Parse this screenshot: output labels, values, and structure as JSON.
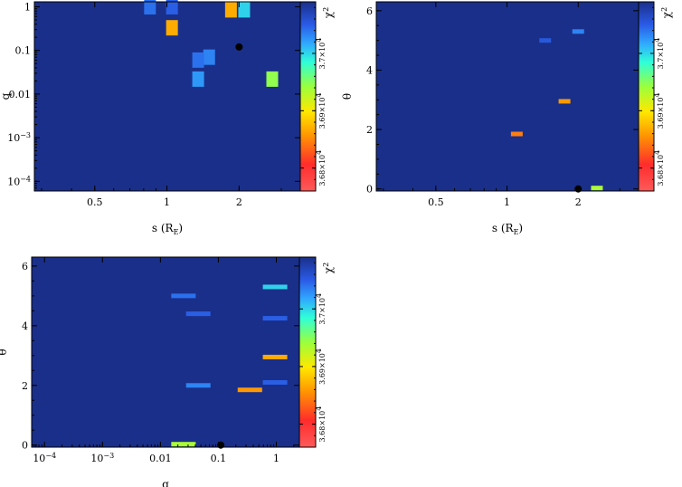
{
  "chart_data": [
    {
      "type": "heatmap",
      "xlabel": "s (R",
      "xlabel_sub": "E",
      "xlabel_close": ")",
      "ylabel": "q",
      "x_scale": "log",
      "y_scale": "log",
      "xlim": [
        0.28,
        3.6
      ],
      "ylim": [
        6e-05,
        1.3
      ],
      "x_ticks": [
        {
          "value": 0.5,
          "label": "0.5"
        },
        {
          "value": 1,
          "label": "1"
        },
        {
          "value": 2,
          "label": "2"
        }
      ],
      "y_ticks": [
        {
          "value": 1,
          "label": "1"
        },
        {
          "value": 0.1,
          "label": "0.1"
        },
        {
          "value": 0.01,
          "label": "0.01"
        },
        {
          "value": 0.001,
          "label": "10",
          "sup": "−3"
        },
        {
          "value": 0.0001,
          "label": "10",
          "sup": "−4"
        }
      ],
      "cells": [
        {
          "x": 0.85,
          "y": 1.0,
          "value": 37040
        },
        {
          "x": 1.05,
          "y": 1.0,
          "value": 37050
        },
        {
          "x": 1.05,
          "y": 0.33,
          "value": 36850
        },
        {
          "x": 1.85,
          "y": 0.85,
          "value": 36850
        },
        {
          "x": 2.1,
          "y": 0.85,
          "value": 36990
        },
        {
          "x": 1.5,
          "y": 0.07,
          "value": 37030
        },
        {
          "x": 1.35,
          "y": 0.06,
          "value": 37040
        },
        {
          "x": 1.35,
          "y": 0.022,
          "value": 37020
        },
        {
          "x": 2.75,
          "y": 0.022,
          "value": 36930
        }
      ],
      "best_fit": {
        "x": 2.0,
        "y": 0.12
      },
      "colorbar": {
        "title": "χ",
        "title_sup": "2",
        "ticks": [
          {
            "value": 37000,
            "label": "3.7×10",
            "sup": "4"
          },
          {
            "value": 36900,
            "label": "3.69×10",
            "sup": "4"
          },
          {
            "value": 36800,
            "label": "3.68×10",
            "sup": "4"
          }
        ]
      }
    },
    {
      "type": "heatmap",
      "xlabel": "s (R",
      "xlabel_sub": "E",
      "xlabel_close": ")",
      "ylabel": "θ",
      "x_scale": "log",
      "y_scale": "linear",
      "xlim": [
        0.28,
        3.6
      ],
      "ylim": [
        -0.07,
        6.3
      ],
      "x_ticks": [
        {
          "value": 0.5,
          "label": "0.5"
        },
        {
          "value": 1,
          "label": "1"
        },
        {
          "value": 2,
          "label": "2"
        }
      ],
      "y_ticks": [
        {
          "value": 0,
          "label": "0"
        },
        {
          "value": 2,
          "label": "2"
        },
        {
          "value": 4,
          "label": "4"
        },
        {
          "value": 6,
          "label": "6"
        }
      ],
      "cells": [
        {
          "x": 2.0,
          "y": 5.3,
          "value": 37030
        },
        {
          "x": 1.45,
          "y": 5.0,
          "value": 37055
        },
        {
          "x": 1.75,
          "y": 2.95,
          "value": 36840
        },
        {
          "x": 1.1,
          "y": 1.85,
          "value": 36830
        },
        {
          "x": 2.4,
          "y": 0.03,
          "value": 36920
        }
      ],
      "best_fit": {
        "x": 2.0,
        "y": 0.0
      },
      "colorbar": {
        "title": "χ",
        "title_sup": "2",
        "ticks": [
          {
            "value": 37000,
            "label": "3.7×10",
            "sup": "4"
          },
          {
            "value": 36900,
            "label": "3.69×10",
            "sup": "4"
          },
          {
            "value": 36800,
            "label": "3.68×10",
            "sup": "4"
          }
        ]
      }
    },
    {
      "type": "heatmap",
      "xlabel": "q",
      "ylabel": "θ",
      "x_scale": "log",
      "y_scale": "linear",
      "xlim": [
        6e-05,
        2.5
      ],
      "ylim": [
        -0.07,
        6.3
      ],
      "x_ticks": [
        {
          "value": 0.0001,
          "label": "10",
          "sup": "−4"
        },
        {
          "value": 0.001,
          "label": "10",
          "sup": "−3"
        },
        {
          "value": 0.01,
          "label": "0.01"
        },
        {
          "value": 0.1,
          "label": "0.1"
        },
        {
          "value": 1,
          "label": "1"
        }
      ],
      "y_ticks": [
        {
          "value": 0,
          "label": "0"
        },
        {
          "value": 2,
          "label": "2"
        },
        {
          "value": 4,
          "label": "4"
        },
        {
          "value": 6,
          "label": "6"
        }
      ],
      "cells": [
        {
          "x": 0.95,
          "y": 5.3,
          "value": 36990
        },
        {
          "x": 0.025,
          "y": 5.0,
          "value": 37040
        },
        {
          "x": 0.045,
          "y": 4.4,
          "value": 37050
        },
        {
          "x": 0.95,
          "y": 4.25,
          "value": 37050
        },
        {
          "x": 0.95,
          "y": 2.95,
          "value": 36850
        },
        {
          "x": 0.045,
          "y": 2.0,
          "value": 37030
        },
        {
          "x": 0.35,
          "y": 1.85,
          "value": 36840
        },
        {
          "x": 0.95,
          "y": 2.1,
          "value": 37050
        },
        {
          "x": 0.025,
          "y": 0.03,
          "value": 36920
        }
      ],
      "best_fit": {
        "x": 0.11,
        "y": 0.0
      },
      "colorbar": {
        "title": "χ",
        "title_sup": "2",
        "ticks": [
          {
            "value": 37000,
            "label": "3.7×10",
            "sup": "4"
          },
          {
            "value": 36900,
            "label": "3.69×10",
            "sup": "4"
          },
          {
            "value": 36800,
            "label": "3.68×10",
            "sup": "4"
          }
        ]
      }
    }
  ],
  "colors": {
    "background_cell": "#1a2f8a",
    "colormap": [
      "#ff4d4d",
      "#ff3030",
      "#ffa000",
      "#ffe000",
      "#a0ff3c",
      "#30ffd0",
      "#30b0ff",
      "#2a60e8",
      "#1a2f8a"
    ],
    "colormap_range": [
      36760,
      37090
    ]
  }
}
